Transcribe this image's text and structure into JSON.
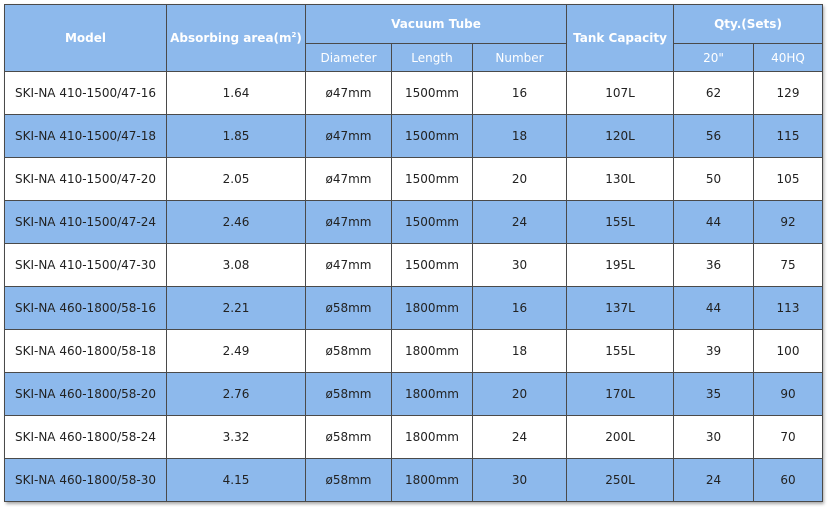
{
  "table": {
    "headers": {
      "model": "Model",
      "absorbing_area": "Absorbing area(m",
      "absorbing_area_sup": "2",
      "absorbing_area_close": ")",
      "vacuum_tube": "Vacuum Tube",
      "diameter": "Diameter",
      "length": "Length",
      "number": "Number",
      "tank_capacity": "Tank Capacity",
      "qty": "Qty.(Sets)",
      "qty_20": "20\"",
      "qty_40hq": "40HQ"
    },
    "rows": [
      {
        "model": "SKI-NA 410-1500/47-16",
        "area": "1.64",
        "diameter": "ø47mm",
        "length": "1500mm",
        "number": "16",
        "tank": "107L",
        "q20": "62",
        "q40": "129"
      },
      {
        "model": "SKI-NA 410-1500/47-18",
        "area": "1.85",
        "diameter": "ø47mm",
        "length": "1500mm",
        "number": "18",
        "tank": "120L",
        "q20": "56",
        "q40": "115"
      },
      {
        "model": "SKI-NA 410-1500/47-20",
        "area": "2.05",
        "diameter": "ø47mm",
        "length": "1500mm",
        "number": "20",
        "tank": "130L",
        "q20": "50",
        "q40": "105"
      },
      {
        "model": "SKI-NA 410-1500/47-24",
        "area": "2.46",
        "diameter": "ø47mm",
        "length": "1500mm",
        "number": "24",
        "tank": "155L",
        "q20": "44",
        "q40": "92"
      },
      {
        "model": "SKI-NA 410-1500/47-30",
        "area": "3.08",
        "diameter": "ø47mm",
        "length": "1500mm",
        "number": "30",
        "tank": "195L",
        "q20": "36",
        "q40": "75"
      },
      {
        "model": "SKI-NA 460-1800/58-16",
        "area": "2.21",
        "diameter": "ø58mm",
        "length": "1800mm",
        "number": "16",
        "tank": "137L",
        "q20": "44",
        "q40": "113"
      },
      {
        "model": "SKI-NA 460-1800/58-18",
        "area": "2.49",
        "diameter": "ø58mm",
        "length": "1800mm",
        "number": "18",
        "tank": "155L",
        "q20": "39",
        "q40": "100"
      },
      {
        "model": "SKI-NA 460-1800/58-20",
        "area": "2.76",
        "diameter": "ø58mm",
        "length": "1800mm",
        "number": "20",
        "tank": "170L",
        "q20": "35",
        "q40": "90"
      },
      {
        "model": "SKI-NA 460-1800/58-24",
        "area": "3.32",
        "diameter": "ø58mm",
        "length": "1800mm",
        "number": "24",
        "tank": "200L",
        "q20": "30",
        "q40": "70"
      },
      {
        "model": "SKI-NA 460-1800/58-30",
        "area": "4.15",
        "diameter": "ø58mm",
        "length": "1800mm",
        "number": "30",
        "tank": "250L",
        "q20": "24",
        "q40": "60"
      }
    ]
  },
  "colors": {
    "header_bg": "#8db9ec",
    "stripe_bg": "#8db9ec",
    "row_bg": "#ffffff",
    "border": "#4a4a4a"
  }
}
